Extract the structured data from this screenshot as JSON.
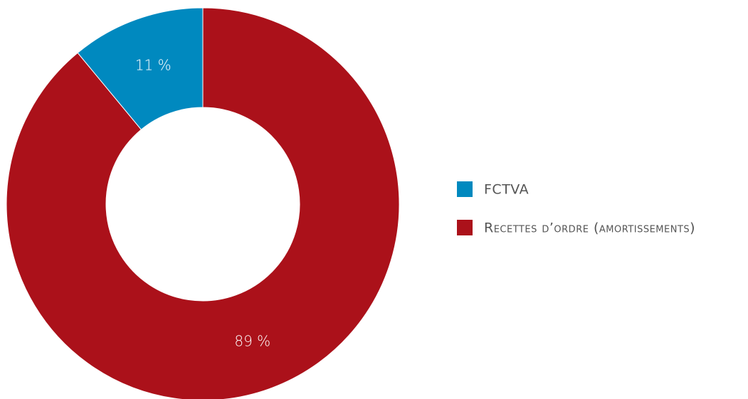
{
  "chart_data": {
    "type": "pie",
    "categories": [
      "FCTVA",
      "Recettes d’ordre (amortissements)"
    ],
    "values": [
      11,
      89
    ],
    "value_labels": [
      "11 %",
      "89 %"
    ],
    "colors": [
      "#0089bf",
      "#ab111a"
    ],
    "donut": true,
    "legend": "right"
  }
}
